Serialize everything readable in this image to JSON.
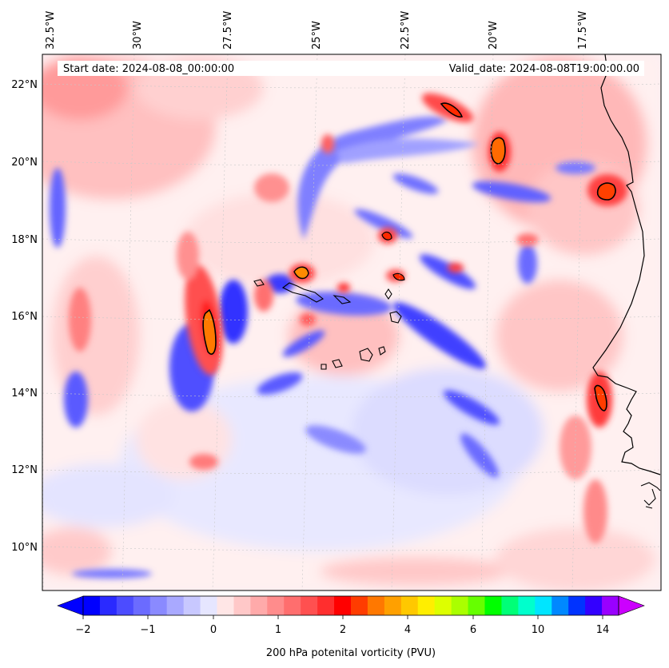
{
  "map": {
    "start_label": "Start date: 2024-08-08_00:00:00",
    "valid_label": "Valid_date: 2024-08-08T19:00:00.00",
    "lon_labels": [
      "32.5°W",
      "30°W",
      "27.5°W",
      "25°W",
      "22.5°W",
      "20°W",
      "17.5°W"
    ],
    "lat_labels": [
      "22°N",
      "20°N",
      "18°N",
      "16°N",
      "14°N",
      "12°N",
      "10°N"
    ],
    "field_name": "200 hPa potential vorticity",
    "coastline": "West Africa (Mauritania / Senegal) and Cape Verde islands"
  },
  "colorbar": {
    "label": "200 hPa potenital vorticity (PVU)",
    "tick_labels": [
      "−2",
      "−1",
      "0",
      "1",
      "2",
      "4",
      "6",
      "10",
      "14"
    ],
    "colors": [
      "#0000ff",
      "#2a2aff",
      "#4c4cff",
      "#6b6bff",
      "#8a8aff",
      "#a9a9ff",
      "#c8c8ff",
      "#e6e6ff",
      "#ffe6e6",
      "#ffc8c8",
      "#ffaaaa",
      "#ff8c8c",
      "#ff6e6e",
      "#ff5050",
      "#ff2e2e",
      "#ff0000",
      "#ff3c00",
      "#ff7800",
      "#ffa000",
      "#ffc800",
      "#ffee00",
      "#ddff00",
      "#aaff00",
      "#66ff00",
      "#00ff00",
      "#00ff77",
      "#00ffcc",
      "#00e5ff",
      "#0088ff",
      "#0033ff",
      "#3300ff",
      "#9900ff"
    ],
    "under_color": "#0000ff",
    "over_color": "#cc00ff"
  }
}
